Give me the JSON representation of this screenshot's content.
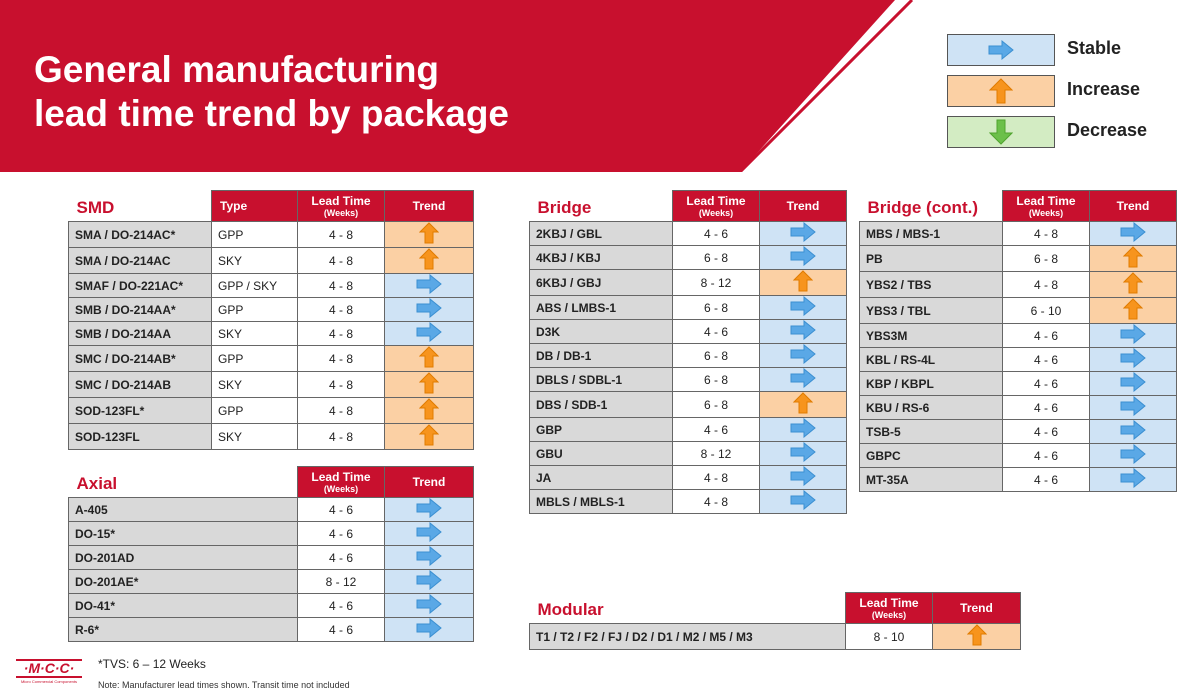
{
  "title": {
    "line1": "General manufacturing",
    "line2": "lead time trend by package"
  },
  "legend": [
    {
      "trend": "stable",
      "label": "Stable"
    },
    {
      "trend": "increase",
      "label": "Increase"
    },
    {
      "trend": "decrease",
      "label": "Decrease"
    }
  ],
  "colors": {
    "brand_red": "#c8102e",
    "stable": "#cfe3f5",
    "increase": "#fbd0a4",
    "decrease": "#d3ecc3"
  },
  "headers": {
    "type": "Type",
    "lead_time": "Lead Time",
    "weeks": "(Weeks)",
    "trend": "Trend"
  },
  "tables": {
    "smd": {
      "title": "SMD",
      "rows": [
        {
          "package": "SMA / DO-214AC*",
          "type": "GPP",
          "lead": "4 - 8",
          "trend": "increase"
        },
        {
          "package": "SMA / DO-214AC",
          "type": "SKY",
          "lead": "4 - 8",
          "trend": "increase"
        },
        {
          "package": "SMAF / DO-221AC*",
          "type": "GPP / SKY",
          "lead": "4 - 8",
          "trend": "stable"
        },
        {
          "package": "SMB / DO-214AA*",
          "type": "GPP",
          "lead": "4 - 8",
          "trend": "stable"
        },
        {
          "package": "SMB / DO-214AA",
          "type": "SKY",
          "lead": "4 - 8",
          "trend": "stable"
        },
        {
          "package": "SMC / DO-214AB*",
          "type": "GPP",
          "lead": "4 - 8",
          "trend": "increase"
        },
        {
          "package": "SMC / DO-214AB",
          "type": "SKY",
          "lead": "4 - 8",
          "trend": "increase"
        },
        {
          "package": "SOD-123FL*",
          "type": "GPP",
          "lead": "4 - 8",
          "trend": "increase"
        },
        {
          "package": "SOD-123FL",
          "type": "SKY",
          "lead": "4 - 8",
          "trend": "increase"
        }
      ]
    },
    "axial": {
      "title": "Axial",
      "rows": [
        {
          "package": "A-405",
          "lead": "4 - 6",
          "trend": "stable"
        },
        {
          "package": "DO-15*",
          "lead": "4 - 6",
          "trend": "stable"
        },
        {
          "package": "DO-201AD",
          "lead": "4 - 6",
          "trend": "stable"
        },
        {
          "package": "DO-201AE*",
          "lead": "8 - 12",
          "trend": "stable"
        },
        {
          "package": "DO-41*",
          "lead": "4 - 6",
          "trend": "stable"
        },
        {
          "package": "R-6*",
          "lead": "4 - 6",
          "trend": "stable"
        }
      ]
    },
    "bridge": {
      "title": "Bridge",
      "rows": [
        {
          "package": "2KBJ / GBL",
          "lead": "4 - 6",
          "trend": "stable"
        },
        {
          "package": "4KBJ / KBJ",
          "lead": "6 - 8",
          "trend": "stable"
        },
        {
          "package": "6KBJ / GBJ",
          "lead": "8 - 12",
          "trend": "increase"
        },
        {
          "package": "ABS / LMBS-1",
          "lead": "6 - 8",
          "trend": "stable"
        },
        {
          "package": "D3K",
          "lead": "4 - 6",
          "trend": "stable"
        },
        {
          "package": "DB / DB-1",
          "lead": "6 - 8",
          "trend": "stable"
        },
        {
          "package": "DBLS / SDBL-1",
          "lead": "6 - 8",
          "trend": "stable"
        },
        {
          "package": "DBS / SDB-1",
          "lead": "6 - 8",
          "trend": "increase"
        },
        {
          "package": "GBP",
          "lead": "4 - 6",
          "trend": "stable"
        },
        {
          "package": "GBU",
          "lead": "8 - 12",
          "trend": "stable"
        },
        {
          "package": "JA",
          "lead": "4 - 8",
          "trend": "stable"
        },
        {
          "package": "MBLS / MBLS-1",
          "lead": "4 - 8",
          "trend": "stable"
        }
      ]
    },
    "bridge_cont": {
      "title": "Bridge (cont.)",
      "rows": [
        {
          "package": "MBS / MBS-1",
          "lead": "4 - 8",
          "trend": "stable"
        },
        {
          "package": "PB",
          "lead": "6 - 8",
          "trend": "increase"
        },
        {
          "package": "YBS2 / TBS",
          "lead": "4 - 8",
          "trend": "increase"
        },
        {
          "package": "YBS3 / TBL",
          "lead": "6 - 10",
          "trend": "increase"
        },
        {
          "package": "YBS3M",
          "lead": "4 - 6",
          "trend": "stable"
        },
        {
          "package": "KBL / RS-4L",
          "lead": "4 - 6",
          "trend": "stable"
        },
        {
          "package": "KBP / KBPL",
          "lead": "4 - 6",
          "trend": "stable"
        },
        {
          "package": "KBU / RS-6",
          "lead": "4 - 6",
          "trend": "stable"
        },
        {
          "package": "TSB-5",
          "lead": "4 - 6",
          "trend": "stable"
        },
        {
          "package": "GBPC",
          "lead": "4 - 6",
          "trend": "stable"
        },
        {
          "package": "MT-35A",
          "lead": "4 - 6",
          "trend": "stable"
        }
      ]
    },
    "modular": {
      "title": "Modular",
      "rows": [
        {
          "package": "T1 / T2 / F2 / FJ / D2 / D1 / M2 / M5 / M3",
          "lead": "8 - 10",
          "trend": "increase"
        }
      ]
    }
  },
  "footer": {
    "logo_text": "·M·C·C·",
    "logo_sub": "Micro Commercial Components",
    "tvs": "*TVS: 6 – 12 Weeks",
    "note": "Note: Manufacturer lead times shown. Transit time not included"
  }
}
